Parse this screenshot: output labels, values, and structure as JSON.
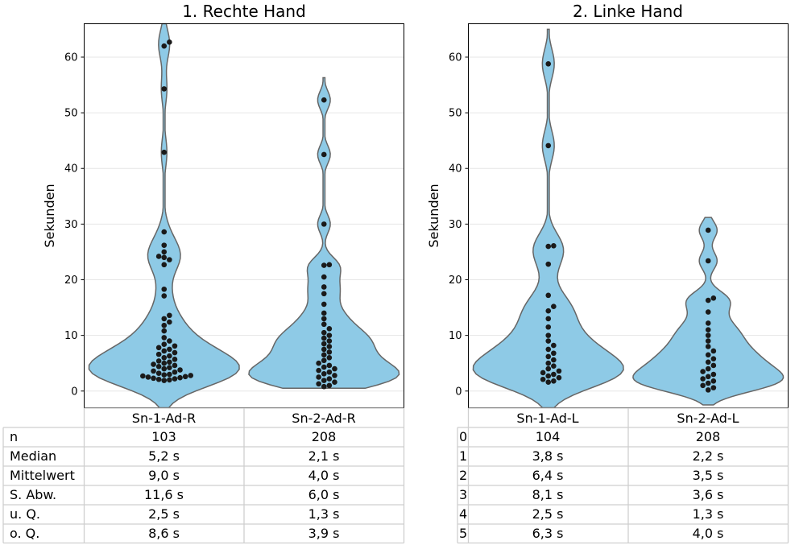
{
  "chart_data": [
    {
      "type": "violin",
      "title": "1. Rechte Hand",
      "ylabel": "Sekunden",
      "ylim": [
        -3,
        66
      ],
      "yticks": [
        0,
        10,
        20,
        30,
        40,
        50,
        60
      ],
      "grid": true,
      "violin_color": "#8ecae6",
      "point_color": "#1a1a1a",
      "categories": [
        "Sn-1-Ad-R",
        "Sn-2-Ad-R"
      ],
      "series": [
        {
          "category": "Sn-1-Ad-R",
          "range": [
            -3,
            66
          ],
          "points": [
            62.7,
            62.0,
            54.3,
            42.9,
            28.6,
            26.2,
            25.0,
            24.2,
            24.0,
            23.6,
            22.7,
            18.3,
            17.1,
            13.6,
            13.0,
            12.4,
            11.8,
            10.8,
            9.6,
            9.0,
            8.4,
            8.1,
            7.8,
            7.5,
            7.2,
            6.9,
            6.6,
            6.3,
            6.0,
            5.7,
            5.4,
            5.2,
            5.0,
            4.8,
            4.6,
            4.4,
            4.2,
            4.0,
            3.8,
            3.6,
            3.4,
            3.2,
            3.0,
            2.9,
            2.8,
            2.7,
            2.6,
            2.5,
            2.4,
            2.3,
            2.2,
            2.1,
            2.0,
            1.9
          ]
        },
        {
          "category": "Sn-2-Ad-R",
          "range": [
            0.5,
            56.3
          ],
          "points": [
            52.3,
            42.5,
            30.0,
            22.7,
            22.6,
            20.5,
            18.7,
            17.5,
            15.6,
            14.0,
            13.0,
            12.0,
            11.2,
            10.5,
            10.0,
            9.5,
            9.0,
            8.5,
            8.0,
            7.5,
            7.0,
            6.5,
            6.0,
            5.5,
            5.0,
            4.6,
            4.3,
            4.0,
            3.7,
            3.4,
            3.1,
            2.8,
            2.5,
            2.2,
            1.9,
            1.6,
            1.3,
            1.0,
            0.8
          ]
        }
      ]
    },
    {
      "type": "violin",
      "title": "2. Linke Hand",
      "ylabel": "Sekunden",
      "ylim": [
        -3,
        66
      ],
      "yticks": [
        0,
        10,
        20,
        30,
        40,
        50,
        60
      ],
      "grid": true,
      "violin_color": "#8ecae6",
      "point_color": "#1a1a1a",
      "categories": [
        "Sn-1-Ad-L",
        "Sn-2-Ad-L"
      ],
      "series": [
        {
          "category": "Sn-1-Ad-L",
          "range": [
            -3,
            65
          ],
          "points": [
            58.8,
            44.1,
            26.1,
            26.0,
            22.8,
            17.2,
            15.2,
            14.4,
            13.0,
            11.5,
            10.0,
            9.0,
            8.2,
            7.5,
            6.8,
            6.2,
            5.6,
            5.0,
            4.5,
            4.0,
            3.6,
            3.3,
            3.0,
            2.7,
            2.4,
            2.1,
            1.8,
            1.6
          ]
        },
        {
          "category": "Sn-2-Ad-L",
          "range": [
            -2.5,
            31.2
          ],
          "points": [
            28.9,
            23.4,
            16.7,
            16.3,
            14.2,
            12.2,
            11.0,
            10.0,
            9.0,
            8.0,
            7.2,
            6.5,
            5.8,
            5.2,
            4.6,
            4.0,
            3.5,
            3.0,
            2.6,
            2.2,
            1.8,
            1.4,
            1.0,
            0.6,
            0.2
          ]
        }
      ]
    }
  ],
  "tables": [
    {
      "columns": [
        "Sn-1-Ad-R",
        "Sn-2-Ad-R"
      ],
      "rows": [
        {
          "label": "n",
          "values": [
            "103",
            "208"
          ]
        },
        {
          "label": "Median",
          "values": [
            "5,2 s",
            "2,1 s"
          ]
        },
        {
          "label": "Mittelwert",
          "values": [
            "9,0 s",
            "4,0 s"
          ]
        },
        {
          "label": "S. Abw.",
          "values": [
            "11,6 s",
            "6,0 s"
          ]
        },
        {
          "label": "u. Q.",
          "values": [
            "2,5 s",
            "1,3 s"
          ]
        },
        {
          "label": "o. Q.",
          "values": [
            "8,6 s",
            "3,9 s"
          ]
        }
      ]
    },
    {
      "columns": [
        "Sn-1-Ad-L",
        "Sn-2-Ad-L"
      ],
      "rows": [
        {
          "label": "0",
          "values": [
            "104",
            "208"
          ]
        },
        {
          "label": "1",
          "values": [
            "3,8 s",
            "2,2 s"
          ]
        },
        {
          "label": "2",
          "values": [
            "6,4 s",
            "3,5 s"
          ]
        },
        {
          "label": "3",
          "values": [
            "8,1 s",
            "3,6 s"
          ]
        },
        {
          "label": "4",
          "values": [
            "2,5 s",
            "1,3 s"
          ]
        },
        {
          "label": "5",
          "values": [
            "6,3 s",
            "4,0 s"
          ]
        }
      ]
    }
  ]
}
